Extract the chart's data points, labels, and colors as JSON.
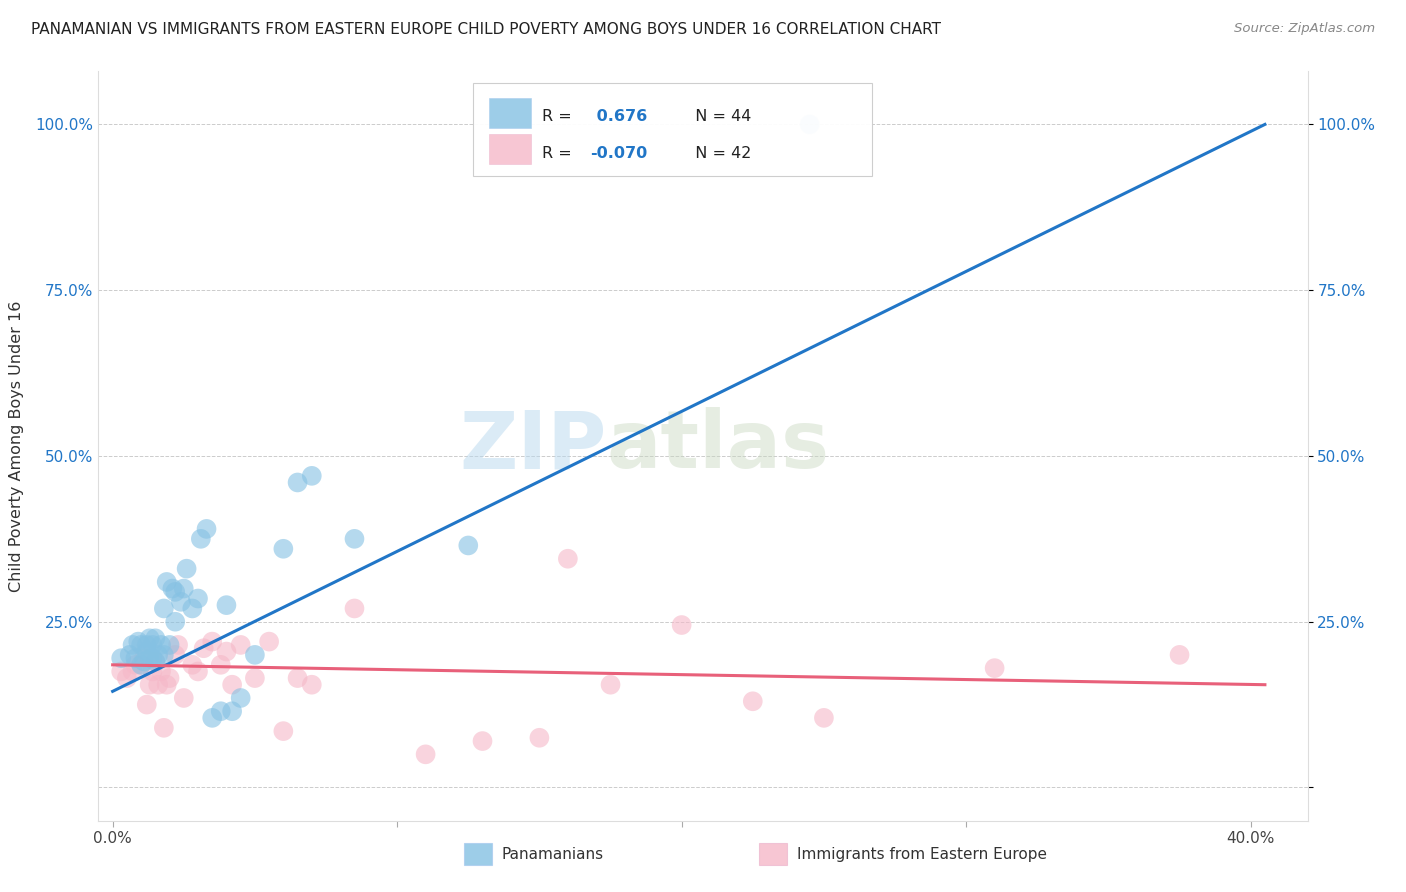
{
  "title": "PANAMANIAN VS IMMIGRANTS FROM EASTERN EUROPE CHILD POVERTY AMONG BOYS UNDER 16 CORRELATION CHART",
  "source": "Source: ZipAtlas.com",
  "ylabel": "Child Poverty Among Boys Under 16",
  "xlabel_ticks": [
    "0.0%",
    "",
    "",
    "",
    "40.0%"
  ],
  "xlabel_vals": [
    0.0,
    0.1,
    0.2,
    0.3,
    0.4
  ],
  "ylabel_ticks": [
    "",
    "25.0%",
    "50.0%",
    "75.0%",
    "100.0%"
  ],
  "ylabel_vals": [
    0.0,
    0.25,
    0.5,
    0.75,
    1.0
  ],
  "xlim": [
    -0.005,
    0.42
  ],
  "ylim": [
    -0.05,
    1.08
  ],
  "blue_color": "#85c1e3",
  "pink_color": "#f5b8c8",
  "blue_line_color": "#2176c7",
  "pink_line_color": "#e8607a",
  "watermark_zip": "ZIP",
  "watermark_atlas": "atlas",
  "legend_label1": "Panamanians",
  "legend_label2": "Immigrants from Eastern Europe",
  "blue_scatter_x": [
    0.003,
    0.006,
    0.007,
    0.008,
    0.009,
    0.01,
    0.01,
    0.011,
    0.012,
    0.012,
    0.013,
    0.013,
    0.014,
    0.014,
    0.015,
    0.015,
    0.016,
    0.017,
    0.018,
    0.018,
    0.019,
    0.02,
    0.021,
    0.022,
    0.022,
    0.024,
    0.025,
    0.026,
    0.028,
    0.03,
    0.031,
    0.033,
    0.035,
    0.038,
    0.04,
    0.042,
    0.045,
    0.05,
    0.06,
    0.065,
    0.07,
    0.085,
    0.125,
    0.245
  ],
  "blue_scatter_y": [
    0.195,
    0.2,
    0.215,
    0.195,
    0.22,
    0.185,
    0.215,
    0.19,
    0.205,
    0.215,
    0.195,
    0.225,
    0.215,
    0.195,
    0.19,
    0.225,
    0.2,
    0.215,
    0.27,
    0.2,
    0.31,
    0.215,
    0.3,
    0.295,
    0.25,
    0.28,
    0.3,
    0.33,
    0.27,
    0.285,
    0.375,
    0.39,
    0.105,
    0.115,
    0.275,
    0.115,
    0.135,
    0.2,
    0.36,
    0.46,
    0.47,
    0.375,
    0.365,
    1.0
  ],
  "pink_scatter_x": [
    0.003,
    0.005,
    0.007,
    0.008,
    0.01,
    0.011,
    0.012,
    0.013,
    0.014,
    0.015,
    0.016,
    0.017,
    0.018,
    0.019,
    0.02,
    0.022,
    0.023,
    0.025,
    0.028,
    0.03,
    0.032,
    0.035,
    0.038,
    0.04,
    0.042,
    0.045,
    0.05,
    0.055,
    0.06,
    0.065,
    0.07,
    0.085,
    0.11,
    0.13,
    0.15,
    0.16,
    0.175,
    0.2,
    0.225,
    0.25,
    0.31,
    0.375
  ],
  "pink_scatter_y": [
    0.175,
    0.165,
    0.175,
    0.185,
    0.185,
    0.195,
    0.125,
    0.155,
    0.175,
    0.19,
    0.155,
    0.175,
    0.09,
    0.155,
    0.165,
    0.2,
    0.215,
    0.135,
    0.185,
    0.175,
    0.21,
    0.22,
    0.185,
    0.205,
    0.155,
    0.215,
    0.165,
    0.22,
    0.085,
    0.165,
    0.155,
    0.27,
    0.05,
    0.07,
    0.075,
    0.345,
    0.155,
    0.245,
    0.13,
    0.105,
    0.18,
    0.2
  ],
  "blue_line_x0": 0.0,
  "blue_line_x1": 0.405,
  "blue_line_y0": 0.145,
  "blue_line_y1": 1.0,
  "pink_line_x0": 0.0,
  "pink_line_x1": 0.405,
  "pink_line_y0": 0.185,
  "pink_line_y1": 0.155
}
